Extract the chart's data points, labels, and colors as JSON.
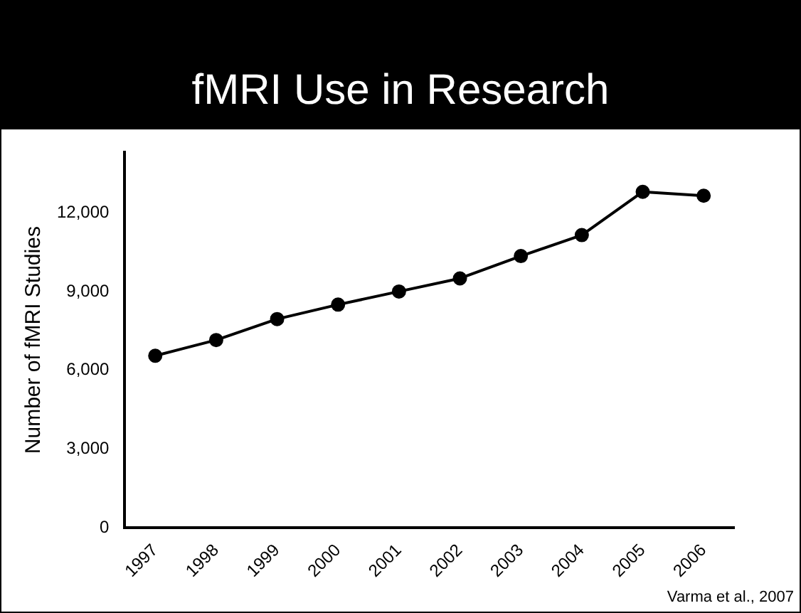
{
  "chart_data": {
    "type": "line",
    "title": "fMRI Use in Research",
    "ylabel": "Number of fMRI Studies",
    "categories": [
      "1997",
      "1998",
      "1999",
      "2000",
      "2001",
      "2002",
      "2003",
      "2004",
      "2005",
      "2006"
    ],
    "series": [
      {
        "color": "#000000",
        "values": [
          6550,
          7150,
          7950,
          8500,
          9000,
          9500,
          10350,
          11150,
          12800,
          12650
        ]
      }
    ],
    "ylim": [
      0,
      14300
    ],
    "yticks": [
      {
        "value": 0,
        "label": "0"
      },
      {
        "value": 3000,
        "label": "3,000"
      },
      {
        "value": 6000,
        "label": "6,000"
      },
      {
        "value": 9000,
        "label": "9,000"
      },
      {
        "value": 12000,
        "label": "12,000"
      }
    ],
    "grid": false,
    "legend": false,
    "marker": "circle",
    "line_style": "solid",
    "annotations": [
      "Varma et al., 2007"
    ]
  }
}
